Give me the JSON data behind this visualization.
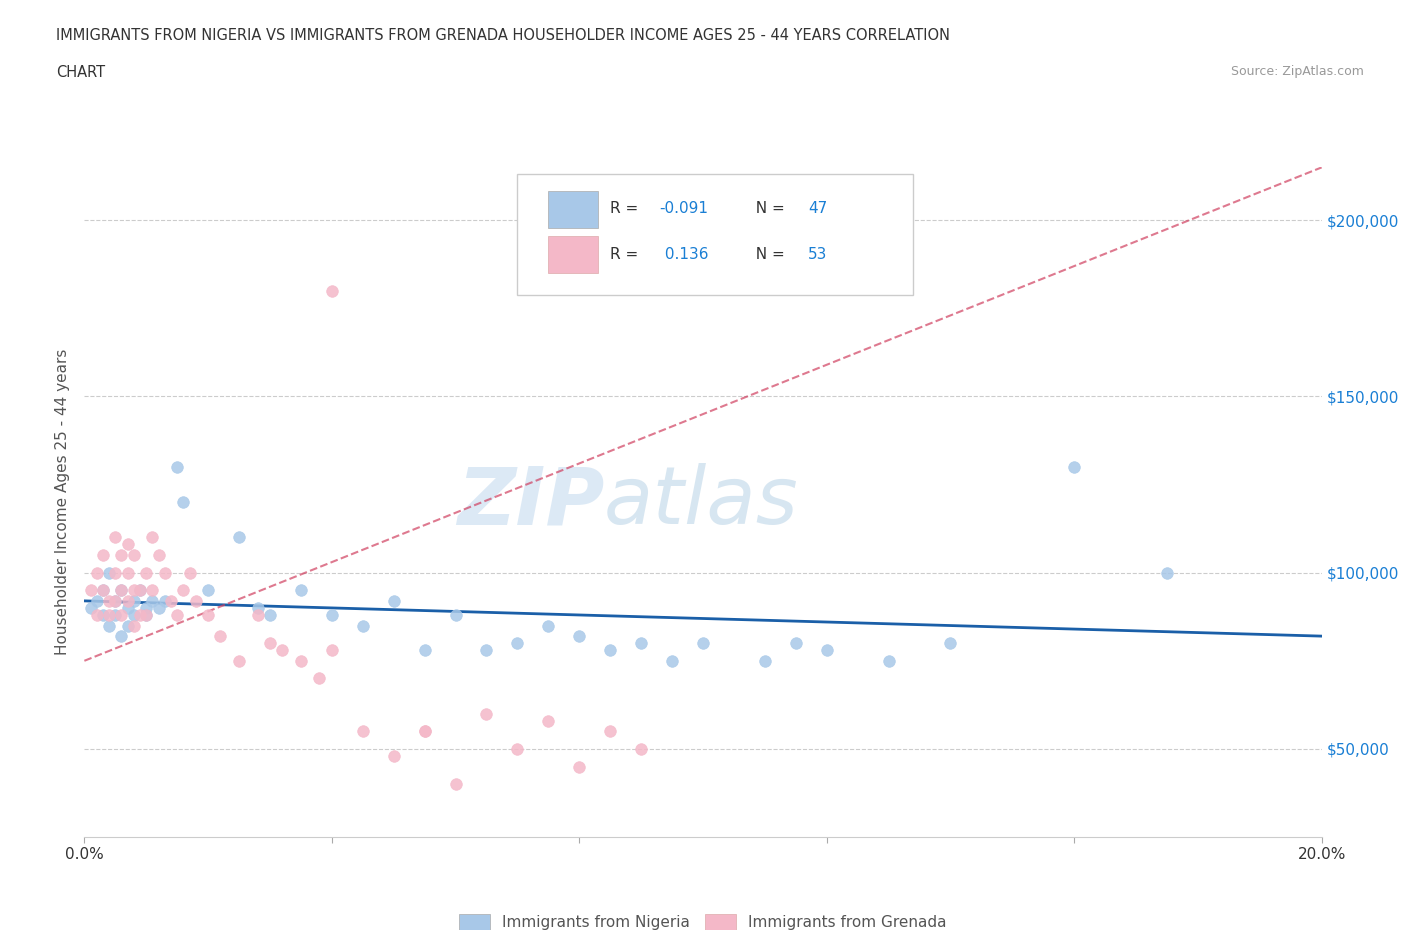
{
  "title_line1": "IMMIGRANTS FROM NIGERIA VS IMMIGRANTS FROM GRENADA HOUSEHOLDER INCOME AGES 25 - 44 YEARS CORRELATION",
  "title_line2": "CHART",
  "source": "Source: ZipAtlas.com",
  "ylabel": "Householder Income Ages 25 - 44 years",
  "xlim": [
    0.0,
    0.2
  ],
  "ylim": [
    25000,
    215000
  ],
  "yticks": [
    50000,
    100000,
    150000,
    200000
  ],
  "ytick_labels": [
    "$50,000",
    "$100,000",
    "$150,000",
    "$200,000"
  ],
  "xticks": [
    0.0,
    0.04,
    0.08,
    0.12,
    0.16,
    0.2
  ],
  "xtick_labels": [
    "0.0%",
    "",
    "",
    "",
    "",
    "20.0%"
  ],
  "nigeria_color": "#a8c8e8",
  "grenada_color": "#f4b8c8",
  "nigeria_line_color": "#1a5fa8",
  "grenada_line_color": "#d04060",
  "watermark_zip": "ZIP",
  "watermark_atlas": "atlas",
  "legend_R_nigeria": "-0.091",
  "legend_N_nigeria": "47",
  "legend_R_grenada": "0.136",
  "legend_N_grenada": "53",
  "nigeria_scatter_x": [
    0.001,
    0.002,
    0.003,
    0.003,
    0.004,
    0.004,
    0.005,
    0.005,
    0.006,
    0.006,
    0.007,
    0.007,
    0.008,
    0.008,
    0.009,
    0.01,
    0.01,
    0.011,
    0.012,
    0.013,
    0.015,
    0.016,
    0.02,
    0.025,
    0.028,
    0.03,
    0.035,
    0.04,
    0.045,
    0.05,
    0.055,
    0.06,
    0.065,
    0.07,
    0.075,
    0.08,
    0.085,
    0.09,
    0.095,
    0.1,
    0.11,
    0.115,
    0.12,
    0.13,
    0.14,
    0.16,
    0.175
  ],
  "nigeria_scatter_y": [
    90000,
    92000,
    88000,
    95000,
    85000,
    100000,
    92000,
    88000,
    95000,
    82000,
    90000,
    85000,
    92000,
    88000,
    95000,
    90000,
    88000,
    92000,
    90000,
    92000,
    130000,
    120000,
    95000,
    110000,
    90000,
    88000,
    95000,
    88000,
    85000,
    92000,
    78000,
    88000,
    78000,
    80000,
    85000,
    82000,
    78000,
    80000,
    75000,
    80000,
    75000,
    80000,
    78000,
    75000,
    80000,
    130000,
    100000
  ],
  "grenada_scatter_x": [
    0.001,
    0.002,
    0.002,
    0.003,
    0.003,
    0.004,
    0.004,
    0.005,
    0.005,
    0.005,
    0.006,
    0.006,
    0.006,
    0.007,
    0.007,
    0.007,
    0.008,
    0.008,
    0.008,
    0.009,
    0.009,
    0.01,
    0.01,
    0.011,
    0.011,
    0.012,
    0.013,
    0.014,
    0.015,
    0.016,
    0.017,
    0.018,
    0.02,
    0.022,
    0.025,
    0.028,
    0.03,
    0.032,
    0.035,
    0.038,
    0.04,
    0.045,
    0.05,
    0.055,
    0.06,
    0.065,
    0.07,
    0.075,
    0.08,
    0.085,
    0.09,
    0.04,
    0.055
  ],
  "grenada_scatter_y": [
    95000,
    100000,
    88000,
    95000,
    105000,
    92000,
    88000,
    100000,
    92000,
    110000,
    88000,
    95000,
    105000,
    100000,
    92000,
    108000,
    85000,
    95000,
    105000,
    88000,
    95000,
    100000,
    88000,
    110000,
    95000,
    105000,
    100000,
    92000,
    88000,
    95000,
    100000,
    92000,
    88000,
    82000,
    75000,
    88000,
    80000,
    78000,
    75000,
    70000,
    78000,
    55000,
    48000,
    55000,
    40000,
    60000,
    50000,
    58000,
    45000,
    55000,
    50000,
    180000,
    55000
  ]
}
